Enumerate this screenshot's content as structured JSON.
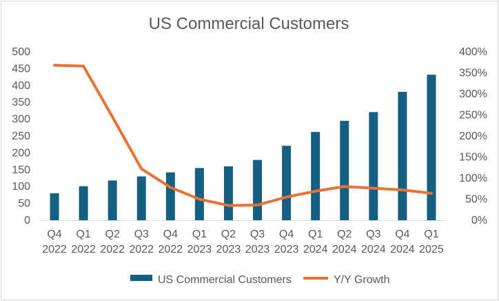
{
  "chart_data": {
    "type": "bar+line",
    "title": "US Commercial Customers",
    "categories": [
      [
        "Q4",
        "2022"
      ],
      [
        "Q1",
        "2022"
      ],
      [
        "Q2",
        "2022"
      ],
      [
        "Q3",
        "2022"
      ],
      [
        "Q4",
        "2022"
      ],
      [
        "Q1",
        "2023"
      ],
      [
        "Q2",
        "2023"
      ],
      [
        "Q3",
        "2023"
      ],
      [
        "Q4",
        "2023"
      ],
      [
        "Q1",
        "2024"
      ],
      [
        "Q2",
        "2024"
      ],
      [
        "Q3",
        "2024"
      ],
      [
        "Q4",
        "2024"
      ],
      [
        "Q1",
        "2025"
      ]
    ],
    "series": [
      {
        "name": "US Commercial Customers",
        "kind": "bar",
        "axis": "left",
        "color": "#156082",
        "values": [
          80,
          101,
          118,
          130,
          142,
          155,
          160,
          179,
          221,
          262,
          295,
          321,
          381,
          432
        ]
      },
      {
        "name": "Y/Y Growth",
        "kind": "line",
        "axis": "right",
        "color": "#E97132",
        "values": [
          3.68,
          3.66,
          2.45,
          1.22,
          0.78,
          0.5,
          0.35,
          0.36,
          0.55,
          0.69,
          0.8,
          0.76,
          0.72,
          0.64
        ]
      }
    ],
    "y_left": {
      "min": 0,
      "max": 500,
      "ticks": [
        "0",
        "50",
        "100",
        "150",
        "200",
        "250",
        "300",
        "350",
        "400",
        "450",
        "500"
      ]
    },
    "y_right": {
      "min": 0,
      "max": 4,
      "ticks": [
        "0%",
        "50%",
        "100%",
        "150%",
        "200%",
        "250%",
        "300%",
        "350%",
        "400%"
      ]
    },
    "grid": false,
    "legend": "bottom"
  }
}
